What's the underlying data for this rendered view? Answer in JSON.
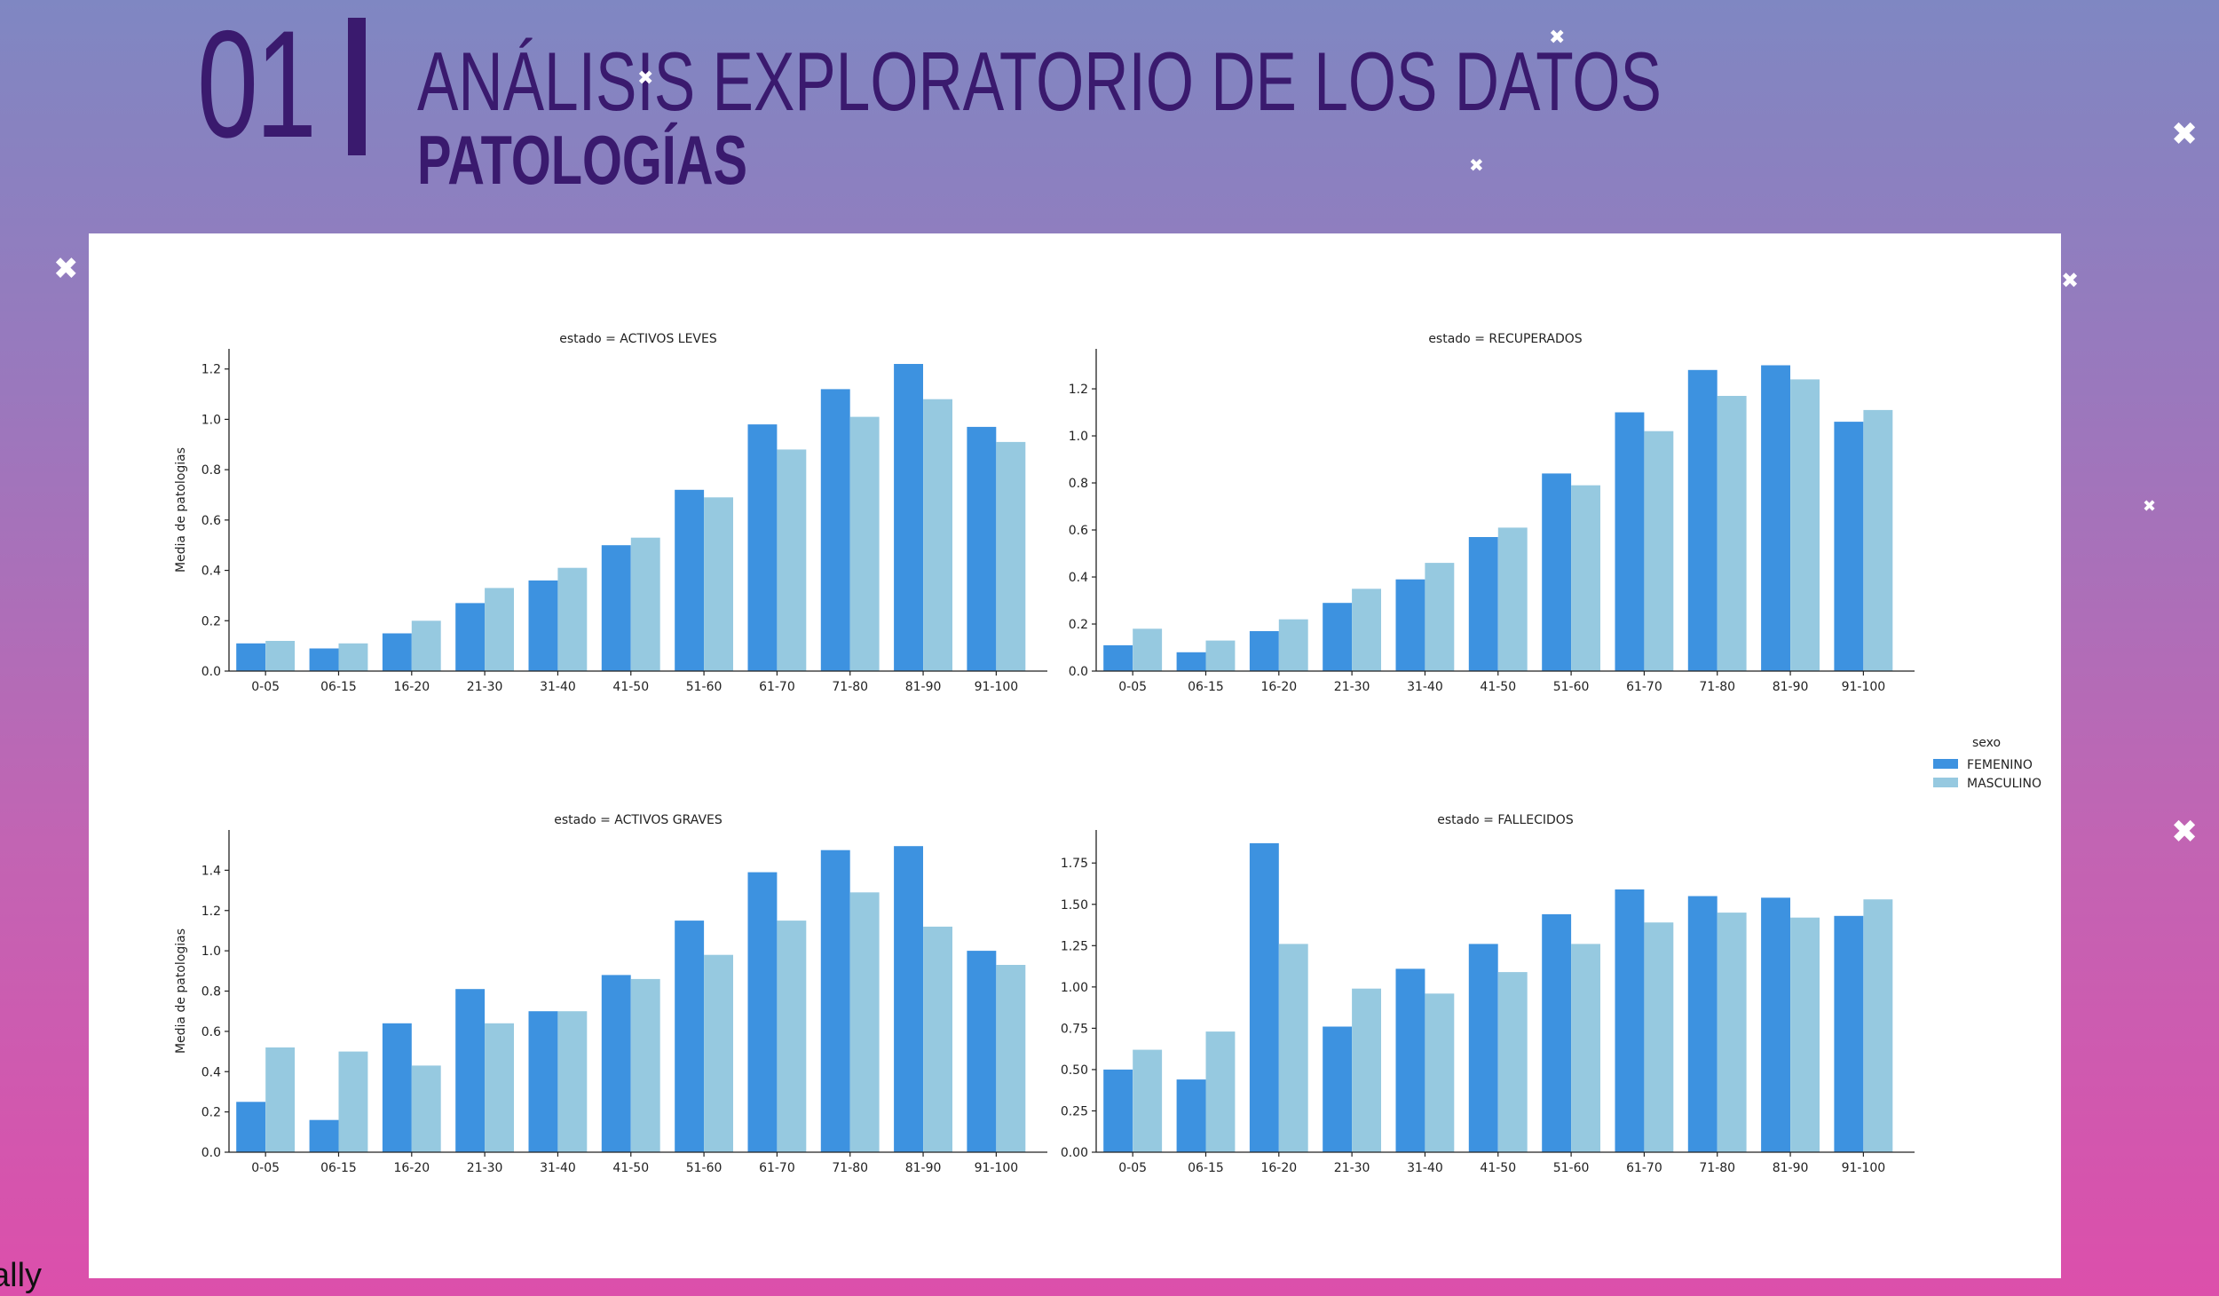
{
  "header": {
    "number": "01",
    "title": "ANÁLISIS EXPLORATORIO DE LOS DATOS",
    "subtitle": "PATOLOGÍAS"
  },
  "footer": {
    "corner_text": "ally"
  },
  "colors": {
    "femenino": "#3d92e0",
    "masculino": "#96c9e0",
    "title": "#3a1a6e"
  },
  "legend": {
    "title": "sexo",
    "items": [
      {
        "label": "FEMENINO",
        "color": "#3d92e0"
      },
      {
        "label": "MASCULINO",
        "color": "#96c9e0"
      }
    ]
  },
  "chart_data": [
    {
      "type": "bar",
      "title": "estado = ACTIVOS LEVES",
      "ylabel": "Media de patologias",
      "xlabel": "",
      "categories": [
        "0-05",
        "06-15",
        "16-20",
        "21-30",
        "31-40",
        "41-50",
        "51-60",
        "61-70",
        "71-80",
        "81-90",
        "91-100"
      ],
      "ylim": [
        0,
        1.28
      ],
      "yticks": [
        "0.0",
        "0.2",
        "0.4",
        "0.6",
        "0.8",
        "1.0",
        "1.2"
      ],
      "series": [
        {
          "name": "FEMENINO",
          "values": [
            0.11,
            0.09,
            0.15,
            0.27,
            0.36,
            0.5,
            0.72,
            0.98,
            1.12,
            1.22,
            0.97
          ]
        },
        {
          "name": "MASCULINO",
          "values": [
            0.12,
            0.11,
            0.2,
            0.33,
            0.41,
            0.53,
            0.69,
            0.88,
            1.01,
            1.08,
            0.91
          ]
        }
      ]
    },
    {
      "type": "bar",
      "title": "estado = RECUPERADOS",
      "ylabel": "",
      "xlabel": "",
      "categories": [
        "0-05",
        "06-15",
        "16-20",
        "21-30",
        "31-40",
        "41-50",
        "51-60",
        "61-70",
        "71-80",
        "81-90",
        "91-100"
      ],
      "ylim": [
        0,
        1.37
      ],
      "yticks": [
        "0.0",
        "0.2",
        "0.4",
        "0.6",
        "0.8",
        "1.0",
        "1.2"
      ],
      "series": [
        {
          "name": "FEMENINO",
          "values": [
            0.11,
            0.08,
            0.17,
            0.29,
            0.39,
            0.57,
            0.84,
            1.1,
            1.28,
            1.3,
            1.06
          ]
        },
        {
          "name": "MASCULINO",
          "values": [
            0.18,
            0.13,
            0.22,
            0.35,
            0.46,
            0.61,
            0.79,
            1.02,
            1.17,
            1.24,
            1.11
          ]
        }
      ]
    },
    {
      "type": "bar",
      "title": "estado = ACTIVOS GRAVES",
      "ylabel": "Media de patologias",
      "xlabel": "",
      "categories": [
        "0-05",
        "06-15",
        "16-20",
        "21-30",
        "31-40",
        "41-50",
        "51-60",
        "61-70",
        "71-80",
        "81-90",
        "91-100"
      ],
      "ylim": [
        0,
        1.6
      ],
      "yticks": [
        "0.0",
        "0.2",
        "0.4",
        "0.6",
        "0.8",
        "1.0",
        "1.2",
        "1.4"
      ],
      "series": [
        {
          "name": "FEMENINO",
          "values": [
            0.25,
            0.16,
            0.64,
            0.81,
            0.7,
            0.88,
            1.15,
            1.39,
            1.5,
            1.52,
            1.0
          ]
        },
        {
          "name": "MASCULINO",
          "values": [
            0.52,
            0.5,
            0.43,
            0.64,
            0.7,
            0.86,
            0.98,
            1.15,
            1.29,
            1.12,
            0.93
          ]
        }
      ]
    },
    {
      "type": "bar",
      "title": "estado = FALLECIDOS",
      "ylabel": "",
      "xlabel": "",
      "categories": [
        "0-05",
        "06-15",
        "16-20",
        "21-30",
        "31-40",
        "41-50",
        "51-60",
        "61-70",
        "71-80",
        "81-90",
        "91-100"
      ],
      "ylim": [
        0,
        1.95
      ],
      "yticks": [
        "0.00",
        "0.25",
        "0.50",
        "0.75",
        "1.00",
        "1.25",
        "1.50",
        "1.75"
      ],
      "series": [
        {
          "name": "FEMENINO",
          "values": [
            0.5,
            0.44,
            1.87,
            0.76,
            1.11,
            1.26,
            1.44,
            1.59,
            1.55,
            1.54,
            1.43
          ]
        },
        {
          "name": "MASCULINO",
          "values": [
            0.62,
            0.73,
            1.26,
            0.99,
            0.96,
            1.09,
            1.26,
            1.39,
            1.45,
            1.42,
            1.53
          ]
        }
      ]
    }
  ]
}
